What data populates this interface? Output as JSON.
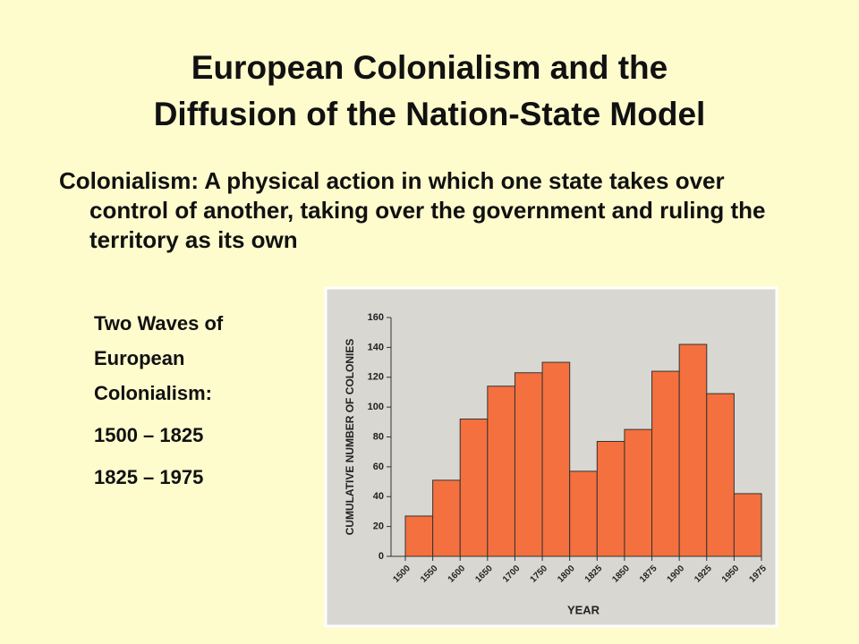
{
  "slide": {
    "title": [
      "European Colonialism and the",
      "Diffusion of the Nation-State Model"
    ],
    "term": "Colonialism",
    "definition": ": A physical action in which one state takes over control of another, taking over the government and ruling the territory as its own",
    "side_heading": "Two Waves of European Colonialism:",
    "waves": [
      "1500 – 1825",
      "1825 – 1975"
    ]
  },
  "chart_data": {
    "type": "histogram",
    "bin_edges": [
      "1500",
      "1550",
      "1600",
      "1650",
      "1700",
      "1750",
      "1800",
      "1825",
      "1850",
      "1875",
      "1900",
      "1925",
      "1950",
      "1975"
    ],
    "values": [
      27,
      51,
      92,
      114,
      123,
      130,
      57,
      77,
      85,
      124,
      142,
      109,
      42
    ],
    "color": "#f4703e",
    "ylim": [
      0,
      160
    ],
    "yticks": [
      0,
      20,
      40,
      60,
      80,
      100,
      120,
      140,
      160
    ],
    "y_label": "CUMULATIVE NUMBER OF COLONIES",
    "x_label": "YEAR"
  }
}
